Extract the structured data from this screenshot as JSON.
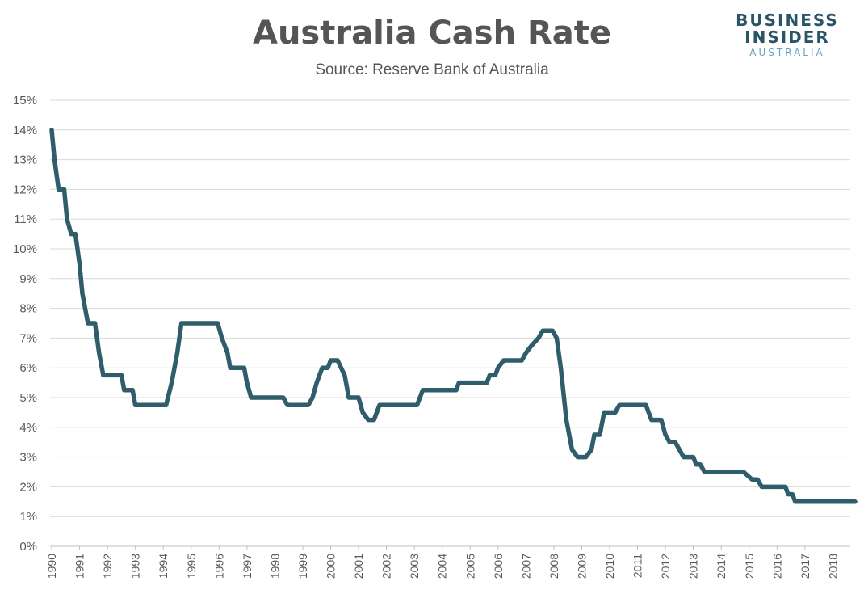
{
  "header": {
    "title": "Australia Cash Rate",
    "subtitle": "Source: Reserve Bank of Australia"
  },
  "logo": {
    "line1": "BUSINESS",
    "line2": "INSIDER",
    "line3": "AUSTRALIA"
  },
  "colors": {
    "line": "#2f5d6b",
    "grid": "#d9d9d9",
    "axis_text": "#595959"
  },
  "chart_data": {
    "type": "line",
    "title": "Australia Cash Rate",
    "subtitle": "Source: Reserve Bank of Australia",
    "xlabel": "",
    "ylabel": "",
    "xlim": [
      1990,
      2018.8
    ],
    "ylim": [
      0,
      15
    ],
    "x_ticks": [
      "1990",
      "1991",
      "1992",
      "1993",
      "1994",
      "1995",
      "1996",
      "1997",
      "1998",
      "1999",
      "2000",
      "2001",
      "2002",
      "2003",
      "2004",
      "2005",
      "2006",
      "2007",
      "2008",
      "2009",
      "2010",
      "2011",
      "2012",
      "2013",
      "2014",
      "2015",
      "2016",
      "2017",
      "2018"
    ],
    "y_ticks": [
      "0%",
      "1%",
      "2%",
      "3%",
      "4%",
      "5%",
      "6%",
      "7%",
      "8%",
      "9%",
      "10%",
      "11%",
      "12%",
      "13%",
      "14%",
      "15%"
    ],
    "grid": "horizontal",
    "legend": "none",
    "series": [
      {
        "values": [
          [
            1990.0,
            14.0
          ],
          [
            1990.1,
            13.0
          ],
          [
            1990.25,
            12.0
          ],
          [
            1990.45,
            12.0
          ],
          [
            1990.55,
            11.0
          ],
          [
            1990.7,
            10.5
          ],
          [
            1990.85,
            10.5
          ],
          [
            1991.0,
            9.5
          ],
          [
            1991.1,
            8.5
          ],
          [
            1991.3,
            7.5
          ],
          [
            1991.55,
            7.5
          ],
          [
            1991.7,
            6.5
          ],
          [
            1991.85,
            5.75
          ],
          [
            1992.5,
            5.75
          ],
          [
            1992.6,
            5.25
          ],
          [
            1992.9,
            5.25
          ],
          [
            1993.0,
            4.75
          ],
          [
            1994.1,
            4.75
          ],
          [
            1994.3,
            5.5
          ],
          [
            1994.5,
            6.5
          ],
          [
            1994.65,
            7.5
          ],
          [
            1995.95,
            7.5
          ],
          [
            1996.1,
            7.0
          ],
          [
            1996.3,
            6.5
          ],
          [
            1996.4,
            6.0
          ],
          [
            1996.9,
            6.0
          ],
          [
            1997.0,
            5.5
          ],
          [
            1997.15,
            5.0
          ],
          [
            1998.3,
            5.0
          ],
          [
            1998.45,
            4.75
          ],
          [
            1999.2,
            4.75
          ],
          [
            1999.35,
            5.0
          ],
          [
            1999.5,
            5.5
          ],
          [
            1999.7,
            6.0
          ],
          [
            1999.9,
            6.0
          ],
          [
            2000.0,
            6.25
          ],
          [
            2000.25,
            6.25
          ],
          [
            2000.5,
            5.75
          ],
          [
            2000.65,
            5.0
          ],
          [
            2001.0,
            5.0
          ],
          [
            2001.15,
            4.5
          ],
          [
            2001.35,
            4.25
          ],
          [
            2001.55,
            4.25
          ],
          [
            2001.75,
            4.75
          ],
          [
            2003.1,
            4.75
          ],
          [
            2003.3,
            5.25
          ],
          [
            2004.5,
            5.25
          ],
          [
            2004.6,
            5.5
          ],
          [
            2005.6,
            5.5
          ],
          [
            2005.7,
            5.75
          ],
          [
            2005.9,
            5.75
          ],
          [
            2006.0,
            6.0
          ],
          [
            2006.2,
            6.25
          ],
          [
            2006.85,
            6.25
          ],
          [
            2007.0,
            6.5
          ],
          [
            2007.2,
            6.75
          ],
          [
            2007.45,
            7.0
          ],
          [
            2007.6,
            7.25
          ],
          [
            2007.95,
            7.25
          ],
          [
            2008.1,
            7.0
          ],
          [
            2008.25,
            6.0
          ],
          [
            2008.45,
            4.25
          ],
          [
            2008.65,
            3.25
          ],
          [
            2008.85,
            3.0
          ],
          [
            2009.15,
            3.0
          ],
          [
            2009.35,
            3.25
          ],
          [
            2009.45,
            3.75
          ],
          [
            2009.65,
            3.75
          ],
          [
            2009.8,
            4.5
          ],
          [
            2010.2,
            4.5
          ],
          [
            2010.35,
            4.75
          ],
          [
            2011.3,
            4.75
          ],
          [
            2011.5,
            4.25
          ],
          [
            2011.85,
            4.25
          ],
          [
            2012.0,
            3.75
          ],
          [
            2012.15,
            3.5
          ],
          [
            2012.35,
            3.5
          ],
          [
            2012.5,
            3.25
          ],
          [
            2012.65,
            3.0
          ],
          [
            2013.0,
            3.0
          ],
          [
            2013.1,
            2.75
          ],
          [
            2013.25,
            2.75
          ],
          [
            2013.4,
            2.5
          ],
          [
            2014.8,
            2.5
          ],
          [
            2015.1,
            2.25
          ],
          [
            2015.3,
            2.25
          ],
          [
            2015.45,
            2.0
          ],
          [
            2016.3,
            2.0
          ],
          [
            2016.4,
            1.75
          ],
          [
            2016.55,
            1.75
          ],
          [
            2016.65,
            1.5
          ],
          [
            2018.8,
            1.5
          ]
        ]
      }
    ]
  }
}
